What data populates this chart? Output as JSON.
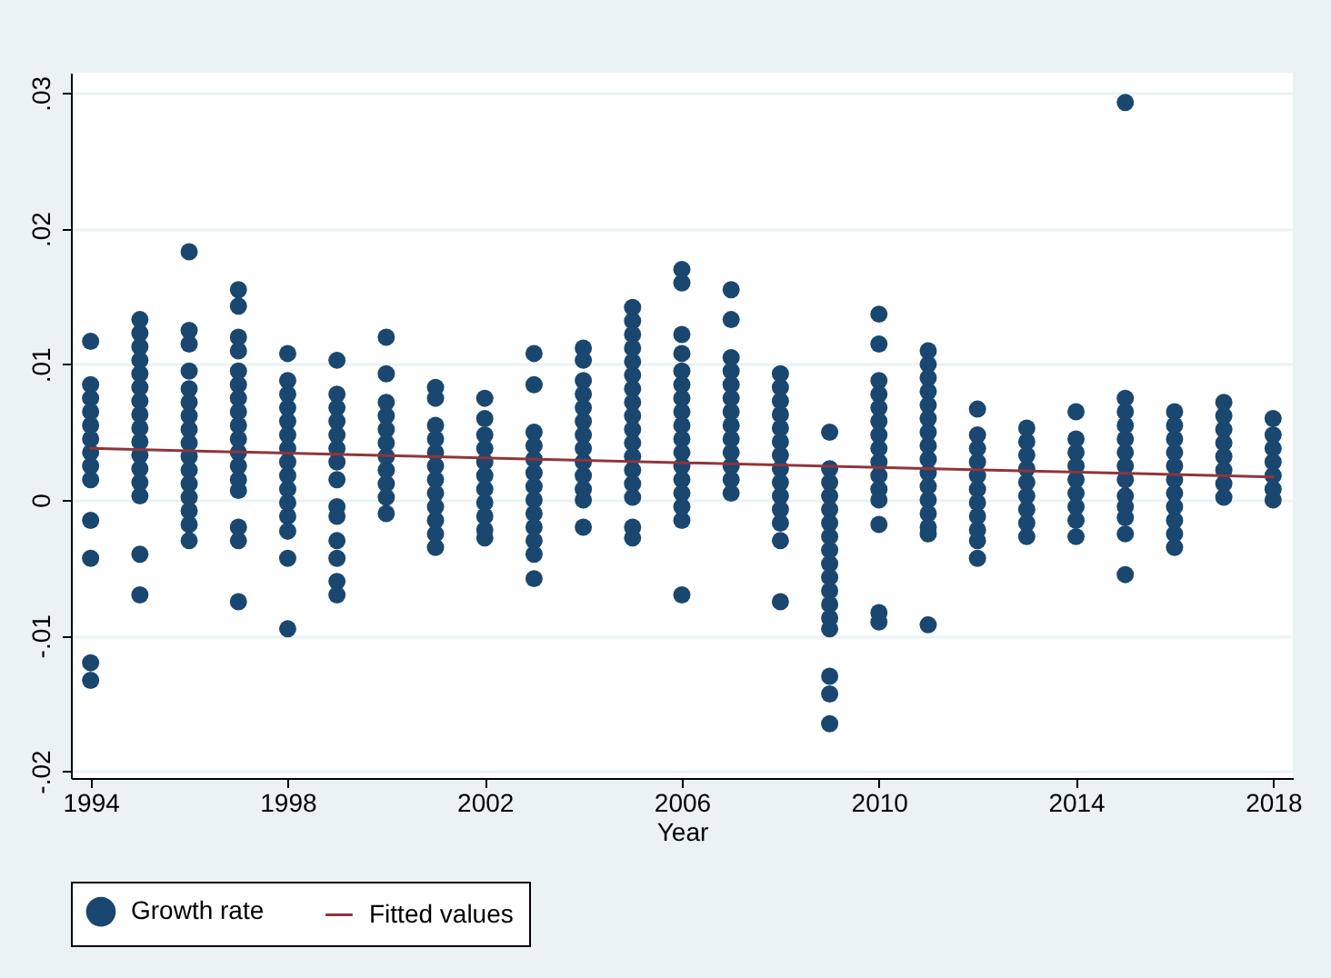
{
  "chart_data": {
    "type": "scatter",
    "xlabel": "Year",
    "grid": "y",
    "legend": "bottom",
    "xlim": [
      1993.6,
      2018.4
    ],
    "xticks": [
      1994,
      1998,
      2002,
      2006,
      2010,
      2014,
      2018
    ],
    "ylim": [
      -0.0205,
      0.0315
    ],
    "yticks": [
      {
        "value": -0.02,
        "label": "-.02"
      },
      {
        "value": -0.01,
        "label": "-.01"
      },
      0,
      {
        "value": 0.01,
        "label": ".01"
      },
      {
        "value": 0.02,
        "label": ".02"
      },
      {
        "value": 0.03,
        "label": ".03"
      }
    ],
    "series": [
      {
        "name": "Growth rate",
        "marker": "circle",
        "color": "#1a476f",
        "x": [
          1994,
          1994,
          1994,
          1994,
          1994,
          1994,
          1994,
          1994,
          1994,
          1994,
          1994,
          1994,
          1994,
          1995,
          1995,
          1995,
          1995,
          1995,
          1995,
          1995,
          1995,
          1995,
          1995,
          1995,
          1995,
          1995,
          1995,
          1995,
          1995,
          1996,
          1996,
          1996,
          1996,
          1996,
          1996,
          1996,
          1996,
          1996,
          1996,
          1996,
          1996,
          1996,
          1996,
          1996,
          1996,
          1997,
          1997,
          1997,
          1997,
          1997,
          1997,
          1997,
          1997,
          1997,
          1997,
          1997,
          1997,
          1997,
          1997,
          1997,
          1997,
          1997,
          1998,
          1998,
          1998,
          1998,
          1998,
          1998,
          1998,
          1998,
          1998,
          1998,
          1998,
          1998,
          1998,
          1998,
          1998,
          1999,
          1999,
          1999,
          1999,
          1999,
          1999,
          1999,
          1999,
          1999,
          1999,
          1999,
          1999,
          1999,
          1999,
          2000,
          2000,
          2000,
          2000,
          2000,
          2000,
          2000,
          2000,
          2000,
          2000,
          2000,
          2001,
          2001,
          2001,
          2001,
          2001,
          2001,
          2001,
          2001,
          2001,
          2001,
          2001,
          2001,
          2002,
          2002,
          2002,
          2002,
          2002,
          2002,
          2002,
          2002,
          2002,
          2002,
          2002,
          2003,
          2003,
          2003,
          2003,
          2003,
          2003,
          2003,
          2003,
          2003,
          2003,
          2003,
          2003,
          2003,
          2004,
          2004,
          2004,
          2004,
          2004,
          2004,
          2004,
          2004,
          2004,
          2004,
          2004,
          2004,
          2004,
          2005,
          2005,
          2005,
          2005,
          2005,
          2005,
          2005,
          2005,
          2005,
          2005,
          2005,
          2005,
          2005,
          2005,
          2005,
          2005,
          2005,
          2006,
          2006,
          2006,
          2006,
          2006,
          2006,
          2006,
          2006,
          2006,
          2006,
          2006,
          2006,
          2006,
          2006,
          2006,
          2006,
          2006,
          2007,
          2007,
          2007,
          2007,
          2007,
          2007,
          2007,
          2007,
          2007,
          2007,
          2007,
          2007,
          2007,
          2008,
          2008,
          2008,
          2008,
          2008,
          2008,
          2008,
          2008,
          2008,
          2008,
          2008,
          2008,
          2008,
          2008,
          2009,
          2009,
          2009,
          2009,
          2009,
          2009,
          2009,
          2009,
          2009,
          2009,
          2009,
          2009,
          2009,
          2009,
          2009,
          2009,
          2009,
          2010,
          2010,
          2010,
          2010,
          2010,
          2010,
          2010,
          2010,
          2010,
          2010,
          2010,
          2010,
          2010,
          2010,
          2010,
          2011,
          2011,
          2011,
          2011,
          2011,
          2011,
          2011,
          2011,
          2011,
          2011,
          2011,
          2011,
          2011,
          2011,
          2011,
          2011,
          2012,
          2012,
          2012,
          2012,
          2012,
          2012,
          2012,
          2012,
          2012,
          2012,
          2012,
          2013,
          2013,
          2013,
          2013,
          2013,
          2013,
          2013,
          2013,
          2013,
          2014,
          2014,
          2014,
          2014,
          2014,
          2014,
          2014,
          2014,
          2014,
          2015,
          2015,
          2015,
          2015,
          2015,
          2015,
          2015,
          2015,
          2015,
          2015,
          2015,
          2015,
          2015,
          2016,
          2016,
          2016,
          2016,
          2016,
          2016,
          2016,
          2016,
          2016,
          2016,
          2016,
          2017,
          2017,
          2017,
          2017,
          2017,
          2017,
          2017,
          2017,
          2018,
          2018,
          2018,
          2018,
          2018,
          2018,
          2018
        ],
        "values": [
          0.0117,
          0.0085,
          0.0075,
          0.0065,
          0.0055,
          0.0045,
          0.0035,
          0.0025,
          0.0015,
          -0.0015,
          -0.0043,
          -0.012,
          -0.0133,
          0.0133,
          0.0123,
          0.0113,
          0.0103,
          0.0093,
          0.0083,
          0.0073,
          0.0063,
          0.0053,
          0.0043,
          0.0033,
          0.0023,
          0.0013,
          0.0003,
          -0.004,
          -0.007,
          0.0183,
          0.0125,
          0.0115,
          0.0095,
          0.0082,
          0.0072,
          0.0062,
          0.0052,
          0.0042,
          0.0032,
          0.0022,
          0.0012,
          0.0002,
          -0.0008,
          -0.0018,
          -0.003,
          0.0155,
          0.0143,
          0.012,
          0.011,
          0.0095,
          0.0085,
          0.0075,
          0.0065,
          0.0055,
          0.0045,
          0.0035,
          0.0025,
          0.0015,
          0.0007,
          -0.002,
          -0.003,
          -0.0075,
          0.0108,
          0.0088,
          0.0078,
          0.0068,
          0.0058,
          0.0048,
          0.0038,
          0.0028,
          0.0018,
          0.0008,
          -0.0002,
          -0.0012,
          -0.0023,
          -0.0043,
          -0.0095,
          0.0103,
          0.0078,
          0.0068,
          0.0058,
          0.0048,
          0.0038,
          0.0028,
          0.0015,
          -0.0005,
          -0.0012,
          -0.003,
          -0.0043,
          -0.006,
          -0.007,
          0.012,
          0.0093,
          0.0072,
          0.0062,
          0.0052,
          0.0042,
          0.0032,
          0.0022,
          0.0012,
          0.0002,
          -0.001,
          0.0083,
          0.0075,
          0.0055,
          0.0045,
          0.0035,
          0.0025,
          0.0015,
          0.0005,
          -0.0005,
          -0.0015,
          -0.0025,
          -0.0035,
          0.0075,
          0.006,
          0.0048,
          0.0038,
          0.0028,
          0.0018,
          0.0008,
          -0.0002,
          -0.0012,
          -0.0022,
          -0.0028,
          0.0108,
          0.0085,
          0.005,
          0.004,
          0.003,
          0.002,
          0.001,
          0,
          -0.001,
          -0.002,
          -0.003,
          -0.004,
          -0.0058,
          0.0112,
          0.0103,
          0.0088,
          0.0078,
          0.0068,
          0.0058,
          0.0048,
          0.0038,
          0.0028,
          0.0018,
          0.0008,
          0,
          -0.002,
          0.0142,
          0.0132,
          0.0122,
          0.0112,
          0.0102,
          0.0092,
          0.0082,
          0.0072,
          0.0062,
          0.0052,
          0.0042,
          0.0032,
          0.0022,
          0.0012,
          0.0002,
          -0.002,
          -0.0028,
          0.017,
          0.016,
          0.0122,
          0.0108,
          0.0095,
          0.0085,
          0.0075,
          0.0065,
          0.0055,
          0.0045,
          0.0035,
          0.0025,
          0.0015,
          0.0005,
          -0.0005,
          -0.0015,
          -0.007,
          0.0155,
          0.0133,
          0.0105,
          0.0095,
          0.0085,
          0.0075,
          0.0065,
          0.0055,
          0.0045,
          0.0035,
          0.0025,
          0.0015,
          0.0005,
          0.0093,
          0.0083,
          0.0073,
          0.0063,
          0.0053,
          0.0043,
          0.0033,
          0.0023,
          0.0013,
          0.0003,
          -0.0007,
          -0.0017,
          -0.003,
          -0.0075,
          0.005,
          0.0023,
          0.0013,
          0.0003,
          -0.0007,
          -0.0017,
          -0.0027,
          -0.0037,
          -0.0047,
          -0.0057,
          -0.0067,
          -0.0077,
          -0.0087,
          -0.0095,
          -0.013,
          -0.0143,
          -0.0165,
          0.0137,
          0.0115,
          0.0088,
          0.0078,
          0.0068,
          0.0058,
          0.0048,
          0.0038,
          0.0028,
          0.0018,
          0.0008,
          0,
          -0.0018,
          -0.0083,
          -0.009,
          0.011,
          0.01,
          0.009,
          0.008,
          0.007,
          0.006,
          0.005,
          0.004,
          0.003,
          0.002,
          0.001,
          0,
          -0.001,
          -0.002,
          -0.0025,
          -0.0092,
          0.0067,
          0.0048,
          0.0038,
          0.0028,
          0.0018,
          0.0008,
          -0.0002,
          -0.0012,
          -0.0022,
          -0.003,
          -0.0043,
          0.0053,
          0.0043,
          0.0033,
          0.0023,
          0.0013,
          0.0003,
          -0.0007,
          -0.0017,
          -0.0027,
          0.0065,
          0.0045,
          0.0035,
          0.0025,
          0.0015,
          0.0005,
          -0.0005,
          -0.0015,
          -0.0027,
          0.0293,
          0.0075,
          0.0065,
          0.0055,
          0.0045,
          0.0035,
          0.0025,
          0.0015,
          0.0003,
          -0.0005,
          -0.0013,
          -0.0025,
          -0.0055,
          0.0065,
          0.0055,
          0.0045,
          0.0035,
          0.0025,
          0.0015,
          0.0005,
          -0.0005,
          -0.0015,
          -0.0025,
          -0.0035,
          0.0072,
          0.0062,
          0.0052,
          0.0042,
          0.0032,
          0.0022,
          0.0012,
          0.0002,
          0.006,
          0.0048,
          0.0038,
          0.0028,
          0.0018,
          0.0008,
          0
        ]
      },
      {
        "name": "Fitted values",
        "type": "line",
        "color": "#90353b",
        "line_style": "solid",
        "x": [
          1994,
          2018
        ],
        "values": [
          0.0038,
          0.0017
        ]
      }
    ]
  }
}
